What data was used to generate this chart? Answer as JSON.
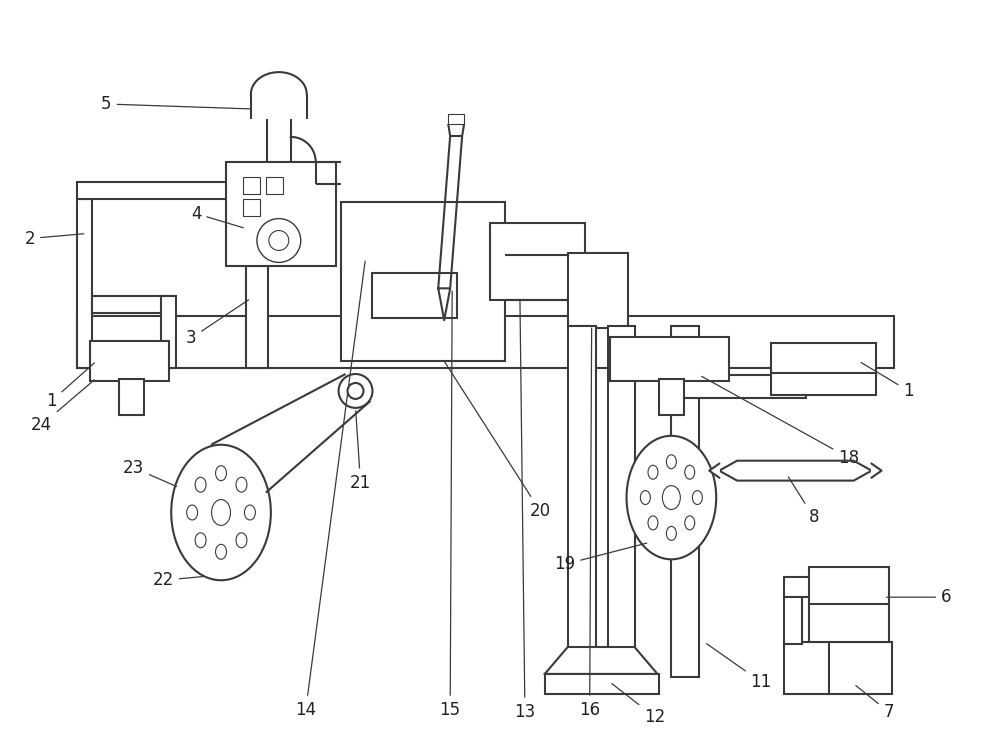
{
  "bg_color": "#ffffff",
  "line_color": "#3a3a3a",
  "line_width": 1.5,
  "label_fontsize": 12,
  "label_color": "#222222"
}
